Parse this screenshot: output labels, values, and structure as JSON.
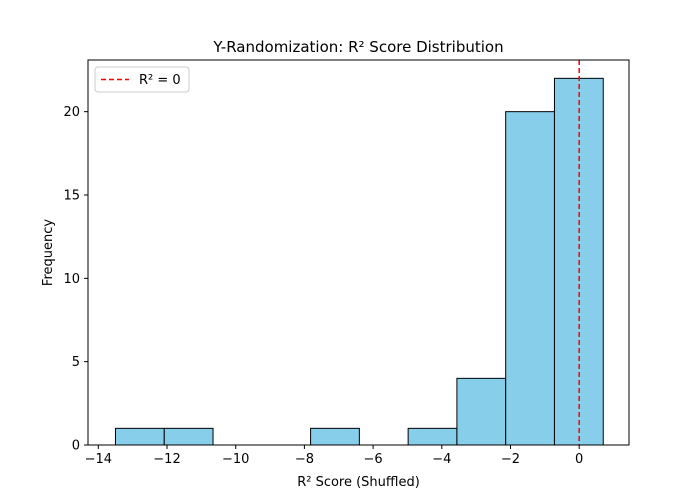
{
  "chart_data": {
    "type": "bar",
    "subtype": "histogram",
    "title": "Y-Randomization: R² Score Distribution",
    "xlabel": "R² Score (Shuffled)",
    "ylabel": "Frequency",
    "xlim": [
      -14.3,
      1.45
    ],
    "ylim": [
      0,
      23.1
    ],
    "x_ticks": [
      -14,
      -12,
      -10,
      -8,
      -6,
      -4,
      -2,
      0
    ],
    "x_tick_labels": [
      "−14",
      "−12",
      "−10",
      "−8",
      "−6",
      "−4",
      "−2",
      "0"
    ],
    "y_ticks": [
      0,
      5,
      10,
      15,
      20
    ],
    "y_tick_labels": [
      "0",
      "5",
      "10",
      "15",
      "20"
    ],
    "bins": [
      {
        "start": -13.5,
        "end": -12.08,
        "count": 1
      },
      {
        "start": -12.08,
        "end": -10.66,
        "count": 1
      },
      {
        "start": -10.66,
        "end": -9.24,
        "count": 0
      },
      {
        "start": -9.24,
        "end": -7.82,
        "count": 0
      },
      {
        "start": -7.82,
        "end": -6.4,
        "count": 1
      },
      {
        "start": -6.4,
        "end": -4.98,
        "count": 0
      },
      {
        "start": -4.98,
        "end": -3.56,
        "count": 1
      },
      {
        "start": -3.56,
        "end": -2.14,
        "count": 4
      },
      {
        "start": -2.14,
        "end": -0.72,
        "count": 20
      },
      {
        "start": -0.72,
        "end": 0.7,
        "count": 22
      }
    ],
    "reference_line": {
      "x": 0,
      "label": "R² = 0",
      "color": "#ff0000",
      "style": "dashed"
    },
    "bar_color": "#87ceeb",
    "bar_edge_color": "#000000",
    "legend": {
      "position": "top-left",
      "entries": [
        "R² = 0"
      ]
    },
    "grid": false
  }
}
